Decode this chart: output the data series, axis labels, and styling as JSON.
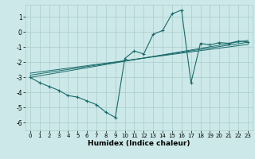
{
  "xlabel": "Humidex (Indice chaleur)",
  "xlim": [
    -0.5,
    23.5
  ],
  "ylim": [
    -6.5,
    1.8
  ],
  "yticks": [
    1,
    0,
    -1,
    -2,
    -3,
    -4,
    -5,
    -6
  ],
  "xticks": [
    0,
    1,
    2,
    3,
    4,
    5,
    6,
    7,
    8,
    9,
    10,
    11,
    12,
    13,
    14,
    15,
    16,
    17,
    18,
    19,
    20,
    21,
    22,
    23
  ],
  "bg_color": "#cce8e8",
  "grid_color": "#aacccc",
  "line_color": "#1a6b6b",
  "main_x": [
    0,
    1,
    2,
    3,
    4,
    5,
    6,
    7,
    8,
    9,
    10,
    11,
    12,
    13,
    14,
    15,
    16,
    17,
    18,
    19,
    20,
    21,
    22,
    23
  ],
  "main_y": [
    -3.0,
    -3.35,
    -3.6,
    -3.85,
    -4.2,
    -4.3,
    -4.55,
    -4.8,
    -5.3,
    -5.65,
    -1.75,
    -1.25,
    -1.45,
    -0.15,
    0.1,
    1.2,
    1.45,
    -3.35,
    -0.75,
    -0.85,
    -0.7,
    -0.75,
    -0.6,
    -0.65
  ],
  "trend1_x": [
    0,
    23
  ],
  "trend1_y": [
    -3.0,
    -0.55
  ],
  "trend2_x": [
    0,
    23
  ],
  "trend2_y": [
    -2.85,
    -0.68
  ],
  "trend3_x": [
    0,
    23
  ],
  "trend3_y": [
    -2.72,
    -0.82
  ]
}
